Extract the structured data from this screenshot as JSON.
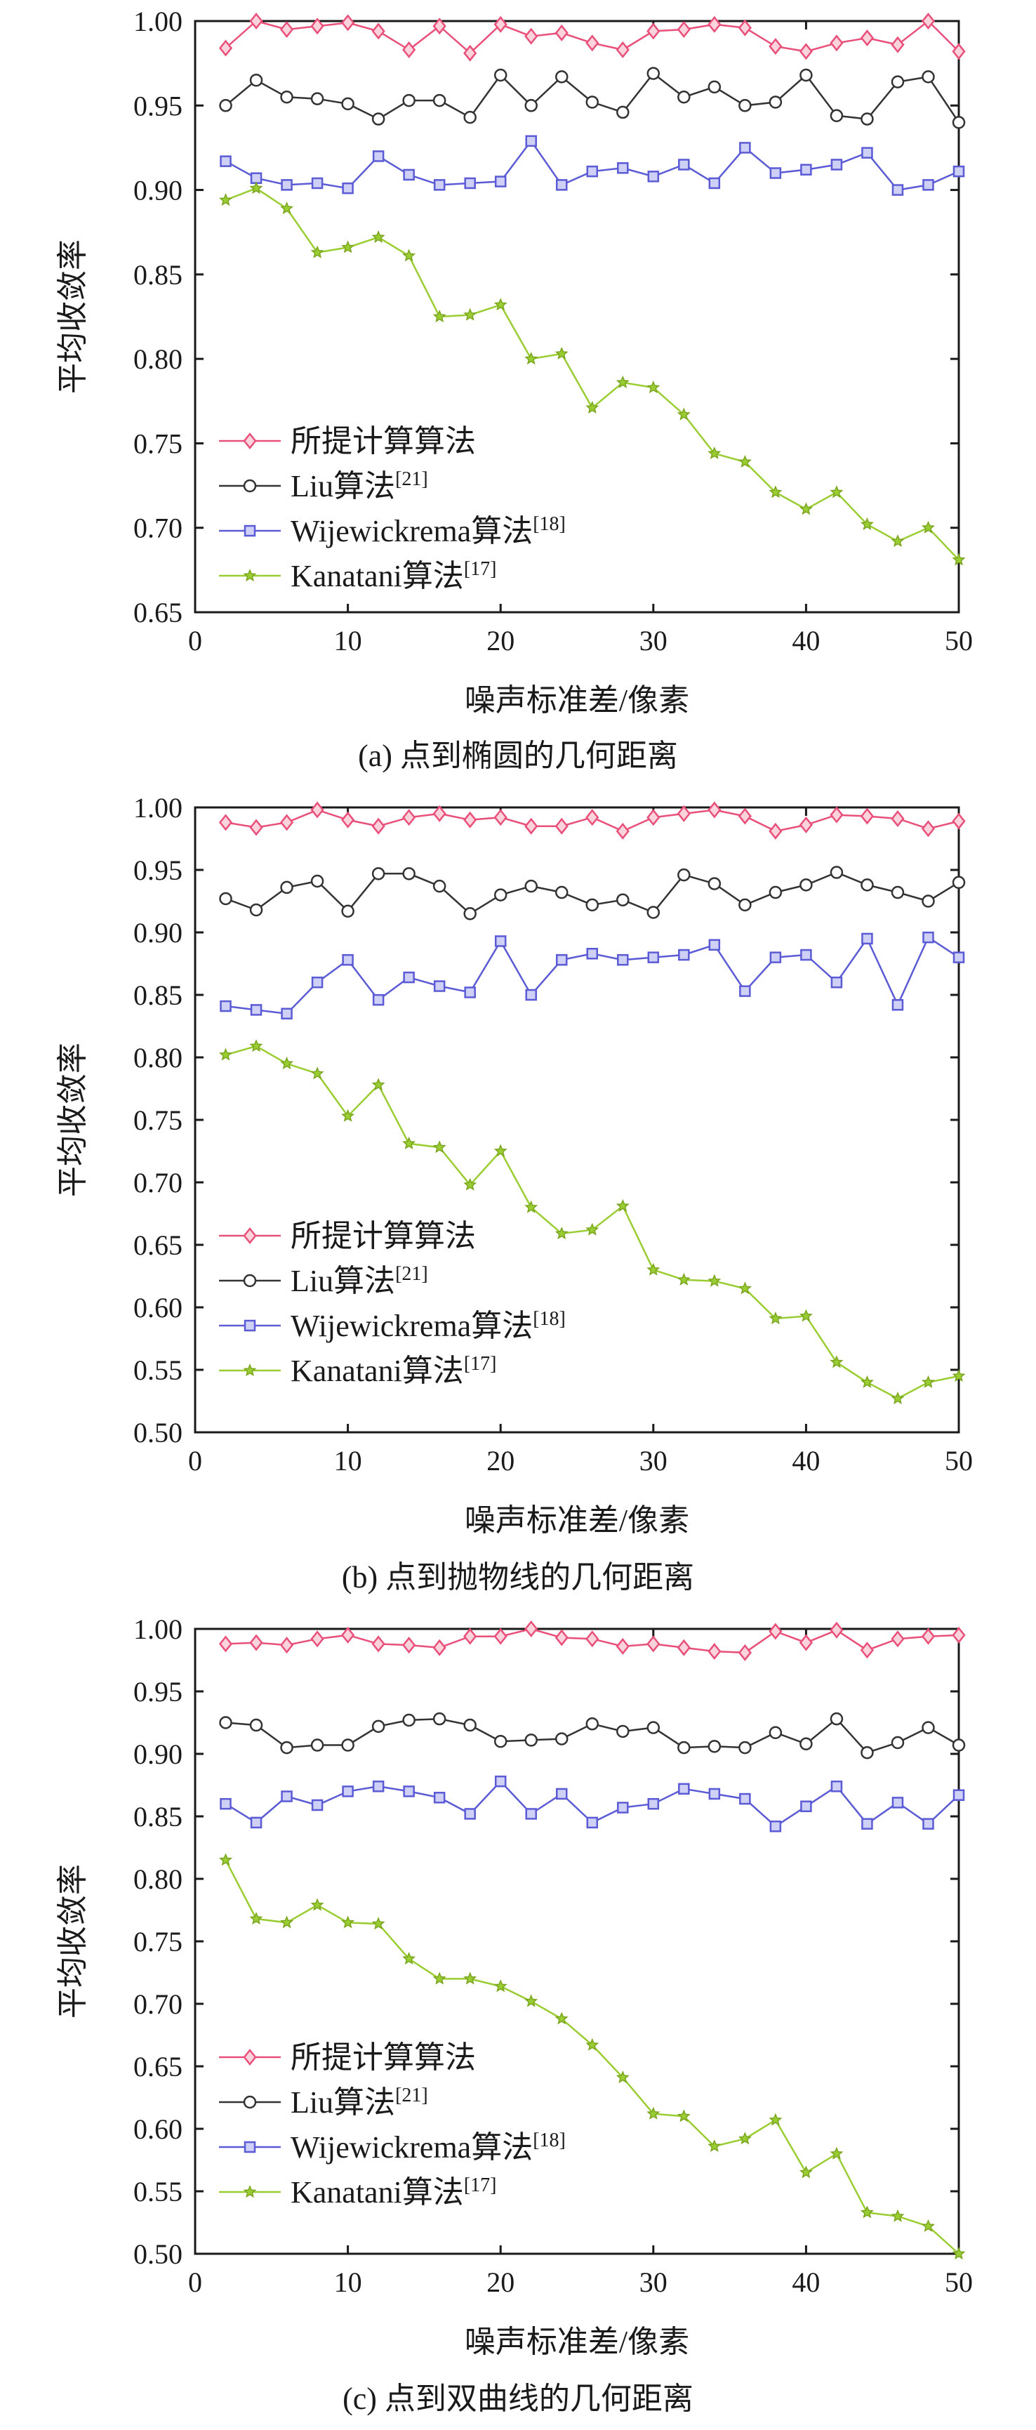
{
  "charts": [
    {
      "type": "line",
      "caption": "(a) 点到椭圆的几何距离",
      "xlabel": "噪声标准差/像素",
      "ylabel": "平均收敛率",
      "xlim": [
        0,
        50
      ],
      "ylim": [
        0.65,
        1.0
      ],
      "xticks": [
        "0",
        "10",
        "20",
        "30",
        "40",
        "50"
      ],
      "yticks": [
        "0.65",
        "0.70",
        "0.75",
        "0.80",
        "0.85",
        "0.90",
        "0.95",
        "1.00"
      ],
      "x": [
        2,
        4,
        6,
        8,
        10,
        12,
        14,
        16,
        18,
        20,
        22,
        24,
        26,
        28,
        30,
        32,
        34,
        36,
        38,
        40,
        42,
        44,
        46,
        48,
        50
      ],
      "series": [
        {
          "name": "所提计算算法",
          "sup": "",
          "color": "#e8507a",
          "marker": "diamond",
          "values": [
            0.984,
            1.0,
            0.995,
            0.997,
            0.999,
            0.994,
            0.983,
            0.997,
            0.981,
            0.998,
            0.991,
            0.993,
            0.987,
            0.983,
            0.994,
            0.995,
            0.998,
            0.996,
            0.985,
            0.982,
            0.987,
            0.99,
            0.986,
            1.0,
            0.982
          ]
        },
        {
          "name": "Liu算法",
          "sup": "[21]",
          "color": "#333333",
          "marker": "circle",
          "values": [
            0.95,
            0.965,
            0.955,
            0.954,
            0.951,
            0.942,
            0.953,
            0.953,
            0.943,
            0.968,
            0.95,
            0.967,
            0.952,
            0.946,
            0.969,
            0.955,
            0.961,
            0.95,
            0.952,
            0.968,
            0.944,
            0.942,
            0.964,
            0.967,
            0.94
          ]
        },
        {
          "name": "Wijewickrema算法",
          "sup": "[18]",
          "color": "#5b5bd6",
          "marker": "square",
          "values": [
            0.917,
            0.907,
            0.903,
            0.904,
            0.901,
            0.92,
            0.909,
            0.903,
            0.904,
            0.905,
            0.929,
            0.903,
            0.911,
            0.913,
            0.908,
            0.915,
            0.904,
            0.925,
            0.91,
            0.912,
            0.915,
            0.922,
            0.9,
            0.903,
            0.911
          ]
        },
        {
          "name": "Kanatani算法",
          "sup": "[17]",
          "color": "#9acd32",
          "marker": "star",
          "values": [
            0.894,
            0.901,
            0.889,
            0.863,
            0.866,
            0.872,
            0.861,
            0.825,
            0.826,
            0.832,
            0.8,
            0.803,
            0.771,
            0.786,
            0.783,
            0.767,
            0.744,
            0.739,
            0.721,
            0.711,
            0.721,
            0.702,
            0.692,
            0.7,
            0.681
          ]
        }
      ]
    },
    {
      "type": "line",
      "caption": "(b) 点到抛物线的几何距离",
      "xlabel": "噪声标准差/像素",
      "ylabel": "平均收敛率",
      "xlim": [
        0,
        50
      ],
      "ylim": [
        0.5,
        1.0
      ],
      "xticks": [
        "0",
        "10",
        "20",
        "30",
        "40",
        "50"
      ],
      "yticks": [
        "0.50",
        "0.55",
        "0.60",
        "0.65",
        "0.70",
        "0.75",
        "0.80",
        "0.85",
        "0.90",
        "0.95",
        "1.00"
      ],
      "x": [
        2,
        4,
        6,
        8,
        10,
        12,
        14,
        16,
        18,
        20,
        22,
        24,
        26,
        28,
        30,
        32,
        34,
        36,
        38,
        40,
        42,
        44,
        46,
        48,
        50
      ],
      "series": [
        {
          "name": "所提计算算法",
          "sup": "",
          "color": "#e8507a",
          "marker": "diamond",
          "values": [
            0.988,
            0.984,
            0.988,
            0.998,
            0.99,
            0.985,
            0.992,
            0.995,
            0.99,
            0.992,
            0.985,
            0.985,
            0.992,
            0.981,
            0.992,
            0.995,
            0.998,
            0.993,
            0.981,
            0.986,
            0.994,
            0.993,
            0.991,
            0.983,
            0.989
          ]
        },
        {
          "name": "Liu算法",
          "sup": "[21]",
          "color": "#333333",
          "marker": "circle",
          "values": [
            0.927,
            0.918,
            0.936,
            0.941,
            0.917,
            0.947,
            0.947,
            0.937,
            0.915,
            0.93,
            0.937,
            0.932,
            0.922,
            0.926,
            0.916,
            0.946,
            0.939,
            0.922,
            0.932,
            0.938,
            0.948,
            0.938,
            0.932,
            0.925,
            0.94
          ]
        },
        {
          "name": "Wijewickrema算法",
          "sup": "[18]",
          "color": "#5b5bd6",
          "marker": "square",
          "values": [
            0.841,
            0.838,
            0.835,
            0.86,
            0.878,
            0.846,
            0.864,
            0.857,
            0.852,
            0.893,
            0.85,
            0.878,
            0.883,
            0.878,
            0.88,
            0.882,
            0.89,
            0.853,
            0.88,
            0.882,
            0.86,
            0.895,
            0.842,
            0.896,
            0.88
          ]
        },
        {
          "name": "Kanatani算法",
          "sup": "[17]",
          "color": "#9acd32",
          "marker": "star",
          "values": [
            0.802,
            0.809,
            0.795,
            0.787,
            0.753,
            0.778,
            0.731,
            0.728,
            0.698,
            0.725,
            0.68,
            0.659,
            0.662,
            0.681,
            0.63,
            0.622,
            0.621,
            0.615,
            0.591,
            0.593,
            0.556,
            0.54,
            0.527,
            0.54,
            0.545
          ]
        }
      ]
    },
    {
      "type": "line",
      "caption": "(c) 点到双曲线的几何距离",
      "xlabel": "噪声标准差/像素",
      "ylabel": "平均收敛率",
      "xlim": [
        0,
        50
      ],
      "ylim": [
        0.5,
        1.0
      ],
      "xticks": [
        "0",
        "10",
        "20",
        "30",
        "40",
        "50"
      ],
      "yticks": [
        "0.50",
        "0.55",
        "0.60",
        "0.65",
        "0.70",
        "0.75",
        "0.80",
        "0.85",
        "0.90",
        "0.95",
        "1.00"
      ],
      "x": [
        2,
        4,
        6,
        8,
        10,
        12,
        14,
        16,
        18,
        20,
        22,
        24,
        26,
        28,
        30,
        32,
        34,
        36,
        38,
        40,
        42,
        44,
        46,
        48,
        50
      ],
      "series": [
        {
          "name": "所提计算算法",
          "sup": "",
          "color": "#e8507a",
          "marker": "diamond",
          "values": [
            0.988,
            0.989,
            0.987,
            0.992,
            0.995,
            0.988,
            0.987,
            0.985,
            0.994,
            0.994,
            1.0,
            0.993,
            0.992,
            0.986,
            0.988,
            0.985,
            0.982,
            0.981,
            0.998,
            0.989,
            0.999,
            0.983,
            0.992,
            0.994,
            0.995
          ]
        },
        {
          "name": "Liu算法",
          "sup": "[21]",
          "color": "#333333",
          "marker": "circle",
          "values": [
            0.925,
            0.923,
            0.905,
            0.907,
            0.907,
            0.922,
            0.927,
            0.928,
            0.923,
            0.91,
            0.911,
            0.912,
            0.924,
            0.918,
            0.921,
            0.905,
            0.906,
            0.905,
            0.917,
            0.908,
            0.928,
            0.901,
            0.909,
            0.921,
            0.907
          ]
        },
        {
          "name": "Wijewickrema算法",
          "sup": "[18]",
          "color": "#5b5bd6",
          "marker": "square",
          "values": [
            0.86,
            0.845,
            0.866,
            0.859,
            0.87,
            0.874,
            0.87,
            0.865,
            0.852,
            0.878,
            0.852,
            0.868,
            0.845,
            0.857,
            0.86,
            0.872,
            0.868,
            0.864,
            0.842,
            0.858,
            0.874,
            0.844,
            0.861,
            0.844,
            0.867
          ]
        },
        {
          "name": "Kanatani算法",
          "sup": "[17]",
          "color": "#9acd32",
          "marker": "star",
          "values": [
            0.815,
            0.768,
            0.765,
            0.779,
            0.765,
            0.764,
            0.736,
            0.72,
            0.72,
            0.714,
            0.702,
            0.688,
            0.667,
            0.641,
            0.612,
            0.61,
            0.586,
            0.592,
            0.607,
            0.565,
            0.58,
            0.533,
            0.53,
            0.522,
            0.5
          ]
        }
      ]
    }
  ]
}
